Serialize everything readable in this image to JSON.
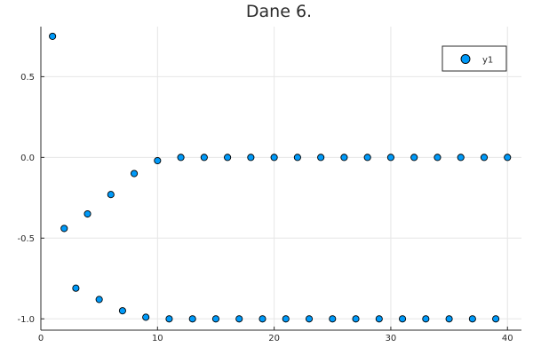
{
  "chart_data": {
    "type": "scatter",
    "title": "Dane 6.",
    "xlabel": "",
    "ylabel": "",
    "xlim": [
      0,
      41.2
    ],
    "ylim": [
      -1.07,
      0.81
    ],
    "x_ticks": [
      0,
      10,
      20,
      30,
      40
    ],
    "y_ticks": [
      -1.0,
      -0.5,
      0.0,
      0.5
    ],
    "x_tick_labels": [
      "0",
      "10",
      "20",
      "30",
      "40"
    ],
    "y_tick_labels": [
      "-1.0",
      "-0.5",
      "0.0",
      "0.5"
    ],
    "grid": true,
    "legend": {
      "position": "top-right",
      "entries": [
        "y1"
      ]
    },
    "marker_color": "#009af9",
    "series": [
      {
        "name": "y1",
        "x": [
          1,
          2,
          3,
          4,
          5,
          6,
          7,
          8,
          9,
          10,
          11,
          12,
          13,
          14,
          15,
          16,
          17,
          18,
          19,
          20,
          21,
          22,
          23,
          24,
          25,
          26,
          27,
          28,
          29,
          30,
          31,
          32,
          33,
          34,
          35,
          36,
          37,
          38,
          39,
          40
        ],
        "y": [
          0.75,
          -0.44,
          -0.81,
          -0.35,
          -0.88,
          -0.23,
          -0.95,
          -0.1,
          -0.99,
          -0.02,
          -1.0,
          0.0,
          -1.0,
          0.0,
          -1.0,
          0.0,
          -1.0,
          0.0,
          -1.0,
          0.0,
          -1.0,
          0.0,
          -1.0,
          0.0,
          -1.0,
          0.0,
          -1.0,
          0.0,
          -1.0,
          0.0,
          -1.0,
          0.0,
          -1.0,
          0.0,
          -1.0,
          0.0,
          -1.0,
          0.0,
          -1.0,
          0.0
        ]
      }
    ]
  }
}
